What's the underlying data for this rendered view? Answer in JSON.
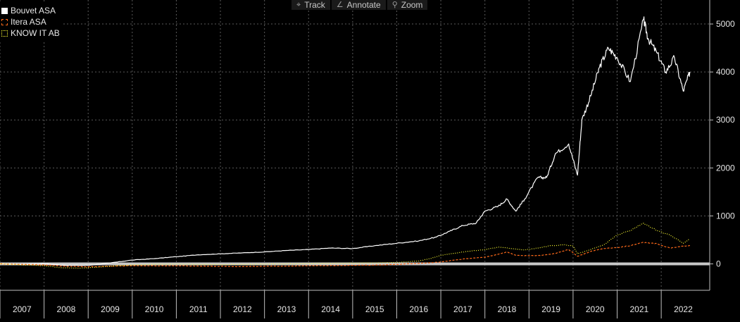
{
  "toolbar": {
    "track_label": "Track",
    "annotate_label": "Annotate",
    "zoom_label": "Zoom"
  },
  "chart_data": {
    "type": "line",
    "xlabel": "",
    "ylabel": "",
    "xlim": [
      2007.0,
      2023.1
    ],
    "ylim": [
      -550,
      5500
    ],
    "y_axis_side": "right",
    "yticks": [
      0,
      1000,
      2000,
      3000,
      4000,
      5000
    ],
    "year_labels": [
      "2007",
      "2008",
      "2009",
      "2010",
      "2011",
      "2012",
      "2013",
      "2014",
      "2015",
      "2016",
      "2017",
      "2018",
      "2019",
      "2020",
      "2021",
      "2022"
    ],
    "grid": true,
    "legend_position": "top-left",
    "colors": {
      "background": "#000000",
      "grid": "#5a5a5a",
      "zero_line": "#c8c8c8"
    },
    "series": [
      {
        "name": "Bouvet ASA",
        "color": "#ffffff",
        "style": "solid",
        "x": [
          2007.0,
          2007.5,
          2008.0,
          2008.5,
          2009.0,
          2009.5,
          2010.0,
          2010.5,
          2011.0,
          2011.5,
          2012.0,
          2012.5,
          2013.0,
          2013.5,
          2014.0,
          2014.5,
          2015.0,
          2015.5,
          2016.0,
          2016.5,
          2016.9,
          2017.2,
          2017.5,
          2017.8,
          2018.0,
          2018.3,
          2018.5,
          2018.7,
          2018.9,
          2019.2,
          2019.4,
          2019.6,
          2019.9,
          2020.1,
          2020.2,
          2020.4,
          2020.6,
          2020.8,
          2021.0,
          2021.3,
          2021.6,
          2021.7,
          2021.9,
          2022.1,
          2022.3,
          2022.5,
          2022.65
        ],
        "values": [
          0,
          -10,
          5,
          -30,
          -30,
          20,
          80,
          110,
          150,
          190,
          210,
          230,
          250,
          280,
          300,
          330,
          320,
          380,
          430,
          480,
          560,
          680,
          800,
          850,
          1100,
          1200,
          1350,
          1100,
          1350,
          1800,
          1800,
          2300,
          2500,
          1850,
          3000,
          3500,
          4100,
          4500,
          4300,
          3800,
          5100,
          4700,
          4400,
          4000,
          4300,
          3600,
          4000
        ]
      },
      {
        "name": "Itera ASA",
        "color": "#ff6a1a",
        "style": "dashed",
        "x": [
          2007.0,
          2007.5,
          2008.0,
          2008.5,
          2009.0,
          2009.5,
          2010.0,
          2010.5,
          2011.0,
          2011.5,
          2012.0,
          2012.5,
          2013.0,
          2013.5,
          2014.0,
          2014.5,
          2015.0,
          2015.5,
          2016.0,
          2016.5,
          2017.0,
          2017.3,
          2017.6,
          2018.0,
          2018.3,
          2018.5,
          2018.7,
          2019.0,
          2019.3,
          2019.6,
          2019.9,
          2020.1,
          2020.4,
          2020.7,
          2021.0,
          2021.3,
          2021.6,
          2021.9,
          2022.2,
          2022.5,
          2022.65
        ],
        "values": [
          0,
          -10,
          -20,
          -50,
          -60,
          -45,
          -40,
          -40,
          -40,
          -45,
          -50,
          -55,
          -50,
          -45,
          -40,
          -35,
          -30,
          -25,
          -10,
          10,
          40,
          80,
          110,
          140,
          200,
          250,
          180,
          170,
          180,
          220,
          300,
          160,
          260,
          320,
          340,
          380,
          450,
          420,
          330,
          370,
          380
        ]
      },
      {
        "name": "KNOW IT AB",
        "color": "#ffff33",
        "style": "dotted",
        "x": [
          2007.0,
          2007.5,
          2008.0,
          2008.4,
          2008.8,
          2009.2,
          2009.6,
          2010.0,
          2010.5,
          2011.0,
          2011.5,
          2012.0,
          2012.5,
          2013.0,
          2013.5,
          2014.0,
          2014.5,
          2015.0,
          2015.5,
          2016.0,
          2016.5,
          2016.8,
          2017.0,
          2017.3,
          2017.6,
          2018.0,
          2018.3,
          2018.6,
          2018.9,
          2019.2,
          2019.5,
          2019.8,
          2020.0,
          2020.1,
          2020.4,
          2020.7,
          2021.0,
          2021.3,
          2021.6,
          2021.9,
          2022.2,
          2022.5,
          2022.65
        ],
        "values": [
          0,
          -20,
          -40,
          -80,
          -90,
          -70,
          -40,
          -20,
          -10,
          -5,
          -10,
          -15,
          -10,
          -5,
          0,
          5,
          10,
          15,
          20,
          30,
          60,
          120,
          180,
          220,
          260,
          300,
          350,
          320,
          290,
          330,
          380,
          400,
          370,
          210,
          300,
          400,
          600,
          700,
          850,
          700,
          600,
          430,
          520
        ]
      }
    ]
  }
}
